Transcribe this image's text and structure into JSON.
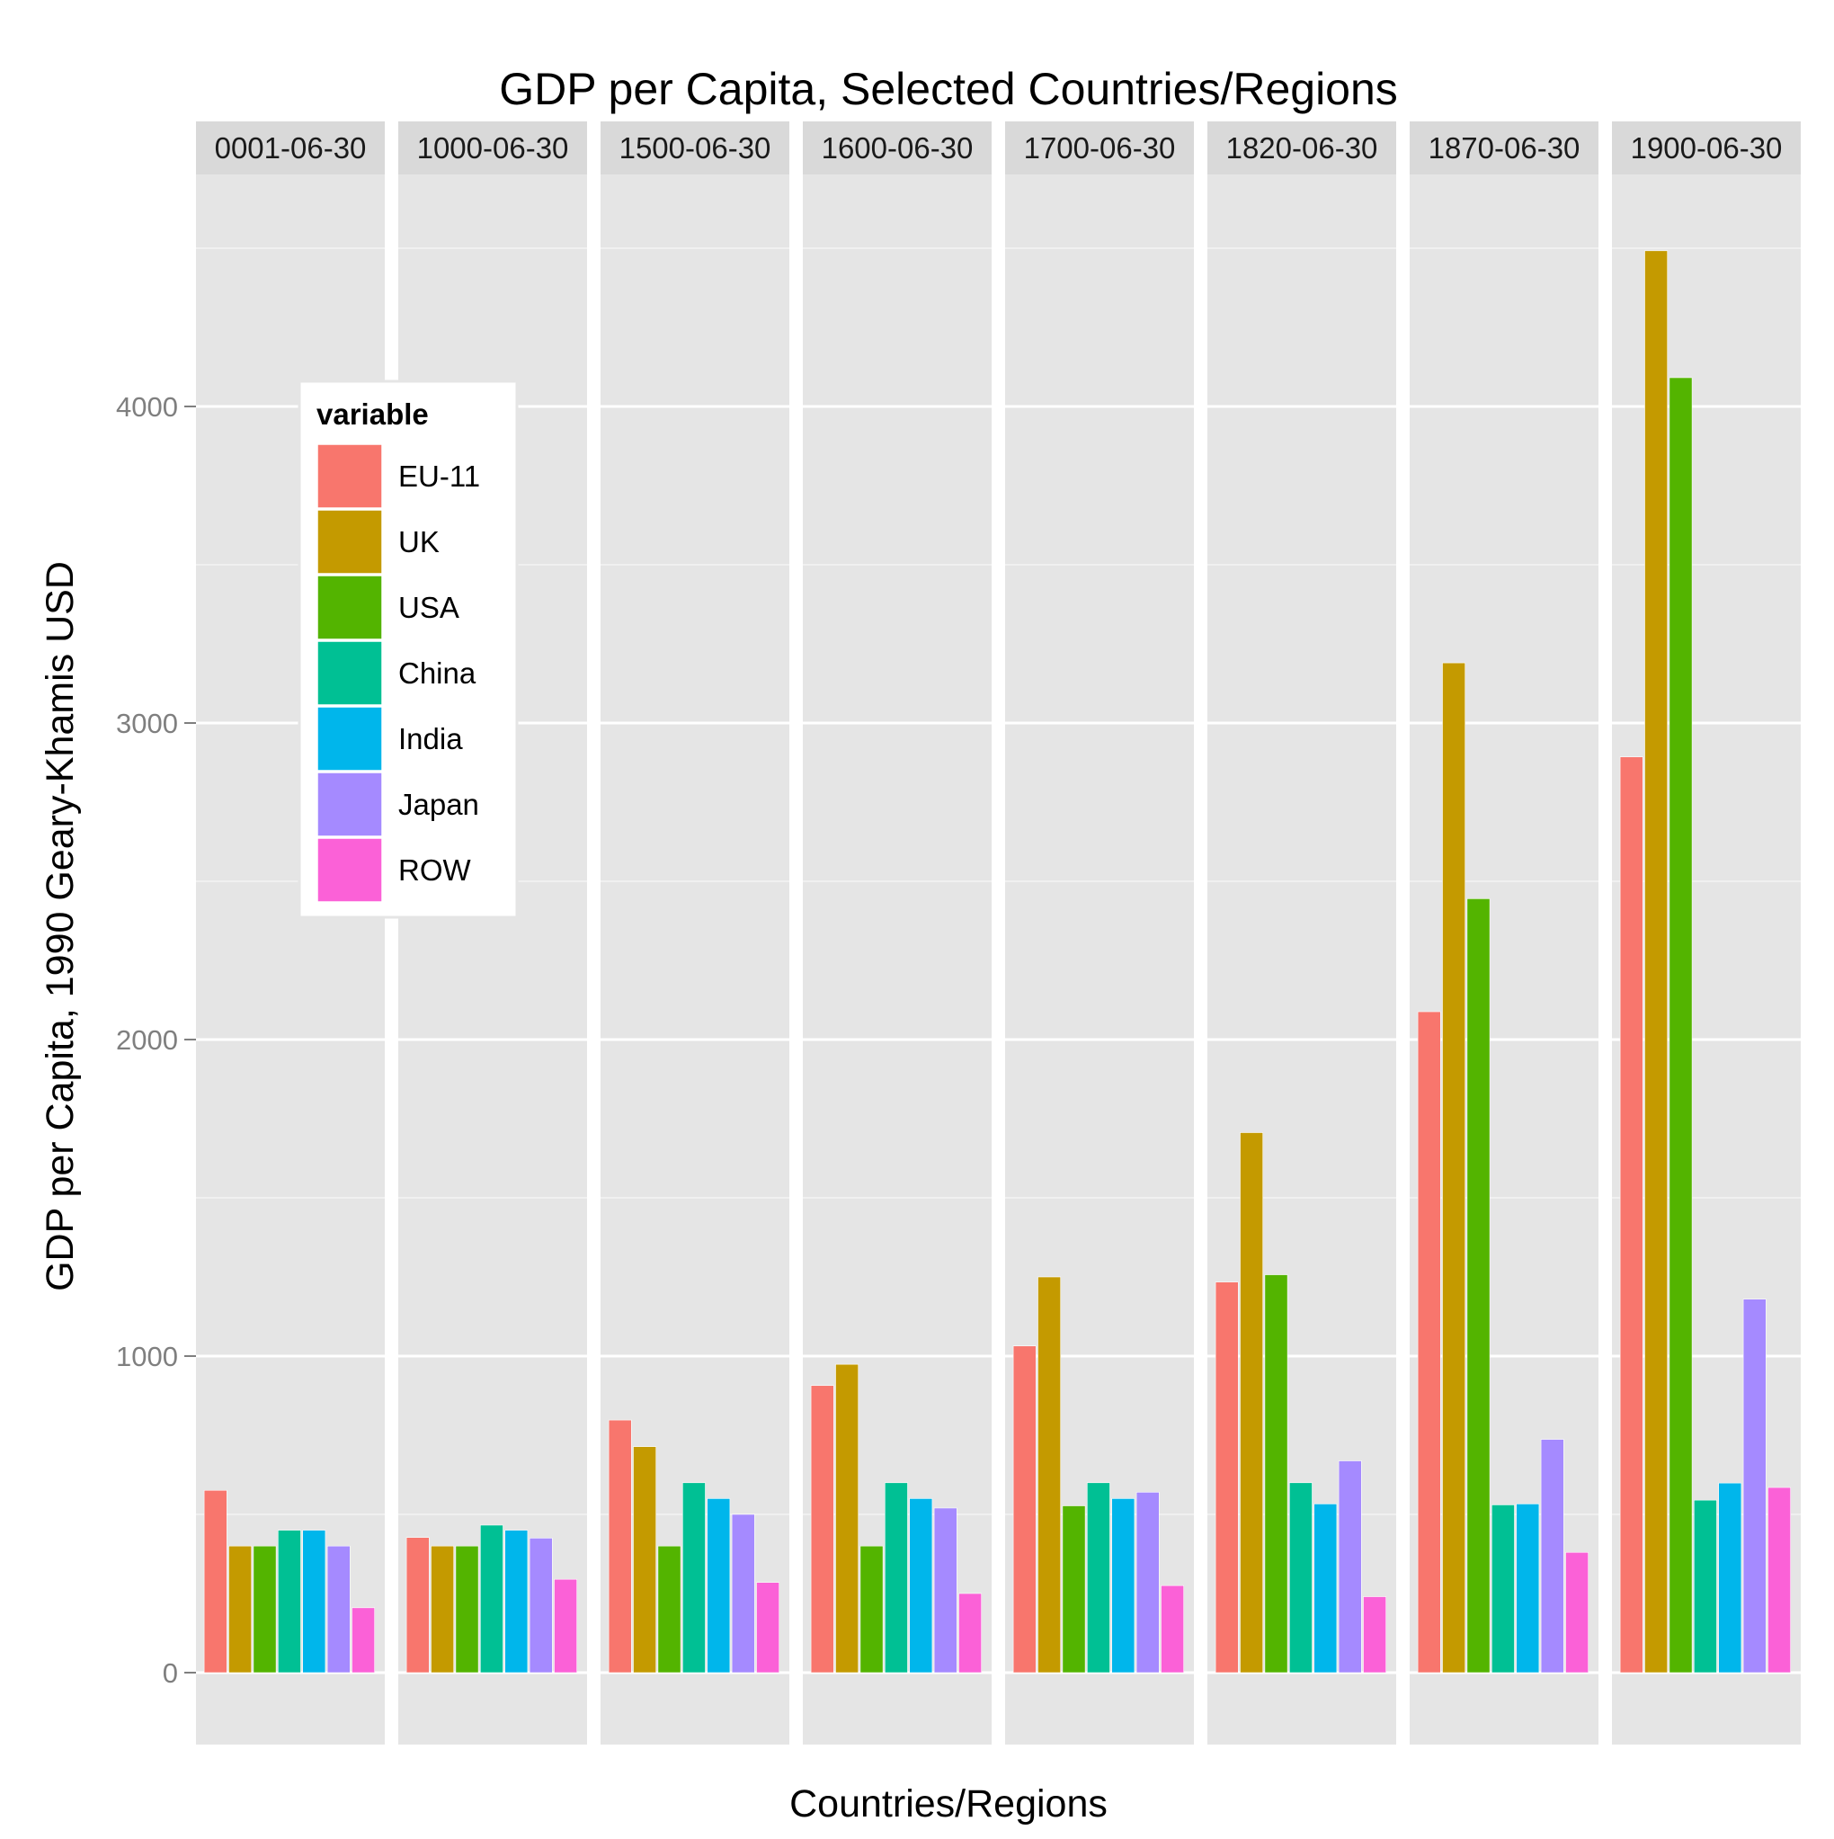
{
  "chart_data": {
    "type": "bar",
    "title": "GDP per Capita, Selected Countries/Regions",
    "xlabel": "Countries/Regions",
    "ylabel": "GDP per Capita, 1990 Geary-Khamis USD",
    "facets": [
      "0001-06-30",
      "1000-06-30",
      "1500-06-30",
      "1600-06-30",
      "1700-06-30",
      "1820-06-30",
      "1870-06-30",
      "1900-06-30"
    ],
    "yticks": [
      0,
      1000,
      2000,
      3000,
      4000
    ],
    "ylim": [
      -200,
      4800
    ],
    "grid": true,
    "legend": {
      "title": "variable",
      "position": "left inside plot"
    },
    "series": [
      {
        "name": "EU-11",
        "color": "#F8766D",
        "values": [
          576,
          427,
          798,
          907,
          1032,
          1234,
          2088,
          2893
        ]
      },
      {
        "name": "UK",
        "color": "#C49A00",
        "values": [
          400,
          400,
          714,
          974,
          1250,
          1706,
          3190,
          4492
        ]
      },
      {
        "name": "USA",
        "color": "#53B400",
        "values": [
          400,
          400,
          400,
          400,
          527,
          1257,
          2445,
          4091
        ]
      },
      {
        "name": "China",
        "color": "#00C094",
        "values": [
          450,
          466,
          600,
          600,
          600,
          600,
          530,
          545
        ]
      },
      {
        "name": "India",
        "color": "#00B6EB",
        "values": [
          450,
          450,
          550,
          550,
          550,
          533,
          533,
          599
        ]
      },
      {
        "name": "Japan",
        "color": "#A58AFF",
        "values": [
          400,
          425,
          500,
          520,
          570,
          669,
          737,
          1180
        ]
      },
      {
        "name": "ROW",
        "color": "#FB61D7",
        "values": [
          205,
          295,
          285,
          250,
          275,
          240,
          380,
          585
        ]
      }
    ]
  }
}
